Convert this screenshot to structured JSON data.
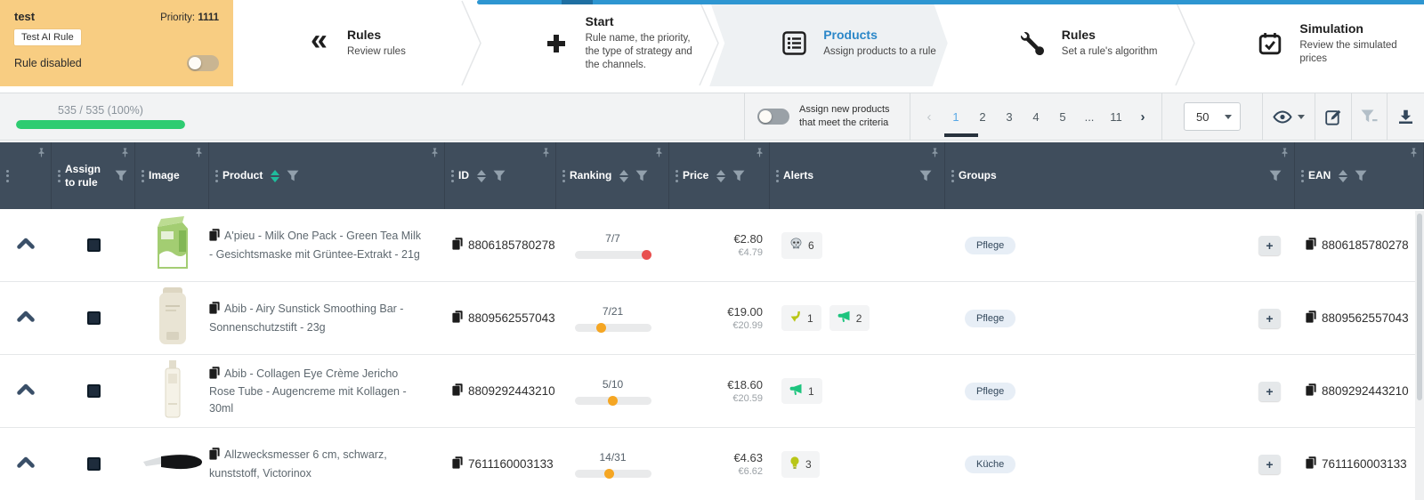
{
  "colors": {
    "panel_bg": "#f8cd82",
    "accent_blue": "#2b87c8",
    "bar_blue": "#2e96d1",
    "header_bg": "#3f4d5c",
    "progress_green": "#2ecc71",
    "sort_active_teal": "#1fbc9c",
    "ranking_red": "#e8504f",
    "ranking_orange": "#f5a623",
    "alert_green": "#1dc47e",
    "alert_lime": "#b9c617",
    "alert_skull": "#d4dadf"
  },
  "rule_panel": {
    "name": "test",
    "priority_label": "Priority:",
    "priority_value": "1111",
    "tag": "Test AI Rule",
    "disabled_label": "Rule disabled",
    "toggle_state": "off"
  },
  "stepper": {
    "steps": [
      {
        "title": "Rules",
        "subtitle": "Review rules",
        "icon": "double-chevron-left-icon",
        "active": false
      },
      {
        "title": "Start",
        "subtitle": "Rule name, the priority, the type of strategy and the channels.",
        "icon": "plus-icon",
        "active": false
      },
      {
        "title": "Products",
        "subtitle": "Assign products to a rule",
        "icon": "list-icon",
        "active": true
      },
      {
        "title": "Rules",
        "subtitle": "Set a rule's algorithm",
        "icon": "wrench-icon",
        "active": false
      },
      {
        "title": "Simulation",
        "subtitle": "Review the simulated prices",
        "icon": "calendar-check-icon",
        "active": false
      }
    ]
  },
  "toolbar": {
    "progress": {
      "label": "535 / 535 (100%)",
      "percent": 100
    },
    "assign_toggle_label": "Assign new products that meet the criteria",
    "assign_toggle_state": "off",
    "pagination": {
      "prev": "‹",
      "pages": [
        "1",
        "2",
        "3",
        "4",
        "5",
        "...",
        "11"
      ],
      "active_page": "1",
      "next": "›"
    },
    "page_size": "50",
    "actions": [
      {
        "icon": "eye-icon",
        "has_caret": true
      },
      {
        "icon": "edit-icon",
        "has_caret": false
      },
      {
        "icon": "filter-clear-icon",
        "has_caret": false
      },
      {
        "icon": "download-icon",
        "has_caret": false
      }
    ]
  },
  "table": {
    "add_button_label": "+",
    "columns": [
      {
        "key": "expand",
        "label": "",
        "filter": false,
        "filter_right": false,
        "sort": null
      },
      {
        "key": "assign",
        "label": "Assign to rule",
        "filter": true,
        "filter_right": false,
        "sort": null
      },
      {
        "key": "image",
        "label": "Image",
        "filter": false,
        "filter_right": false,
        "sort": null
      },
      {
        "key": "product",
        "label": "Product",
        "filter": true,
        "filter_right": false,
        "sort": "active"
      },
      {
        "key": "id",
        "label": "ID",
        "filter": true,
        "filter_right": false,
        "sort": "inactive"
      },
      {
        "key": "ranking",
        "label": "Ranking",
        "filter": true,
        "filter_right": false,
        "sort": "inactive"
      },
      {
        "key": "price",
        "label": "Price",
        "filter": true,
        "filter_right": false,
        "sort": "inactive"
      },
      {
        "key": "alerts",
        "label": "Alerts",
        "filter": true,
        "filter_right": true,
        "sort": null
      },
      {
        "key": "groups",
        "label": "Groups",
        "filter": true,
        "filter_right": true,
        "sort": null
      },
      {
        "key": "ean",
        "label": "EAN",
        "filter": true,
        "filter_right": false,
        "sort": "inactive"
      }
    ],
    "rows": [
      {
        "product": "A'pieu - Milk One Pack - Green Tea Milk - Gesichtsmaske mit Grüntee-Extrakt - 21g",
        "id": "8806185780278",
        "ranking": {
          "label": "7/7",
          "percent": 100,
          "dot_color": "#e8504f"
        },
        "price": "€2.80",
        "old_price": "€4.79",
        "alerts": [
          {
            "icon": "skull-icon",
            "count": "6"
          }
        ],
        "groups": [
          "Pflege"
        ],
        "ean": "8806185780278",
        "image": "green-carton"
      },
      {
        "product": "Abib - Airy Sunstick Smoothing Bar - Sonnenschutzstift - 23g",
        "id": "8809562557043",
        "ranking": {
          "label": "7/21",
          "percent": 33,
          "dot_color": "#f5a623"
        },
        "price": "€19.00",
        "old_price": "€20.99",
        "alerts": [
          {
            "icon": "price-decrease-icon",
            "count": "1"
          },
          {
            "icon": "megaphone-icon",
            "count": "2"
          }
        ],
        "groups": [
          "Pflege"
        ],
        "ean": "8809562557043",
        "image": "beige-stick"
      },
      {
        "product": "Abib - Collagen Eye Crème Jericho Rose Tube - Augencreme mit Kollagen - 30ml",
        "id": "8809292443210",
        "ranking": {
          "label": "5/10",
          "percent": 50,
          "dot_color": "#f5a623"
        },
        "price": "€18.60",
        "old_price": "€20.59",
        "alerts": [
          {
            "icon": "megaphone-icon",
            "count": "1"
          }
        ],
        "groups": [
          "Pflege"
        ],
        "ean": "8809292443210",
        "image": "white-tube"
      },
      {
        "product": "Allzwecksmesser 6 cm, schwarz, kunststoff, Victorinox",
        "id": "7611160003133",
        "ranking": {
          "label": "14/31",
          "percent": 45,
          "dot_color": "#f5a623"
        },
        "price": "€4.63",
        "old_price": "€6.62",
        "alerts": [
          {
            "icon": "lightbulb-icon",
            "count": "3"
          }
        ],
        "groups": [
          "Küche"
        ],
        "ean": "7611160003133",
        "image": "black-knife"
      }
    ]
  }
}
